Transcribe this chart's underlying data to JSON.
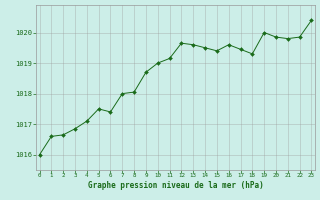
{
  "x": [
    0,
    1,
    2,
    3,
    4,
    5,
    6,
    7,
    8,
    9,
    10,
    11,
    12,
    13,
    14,
    15,
    16,
    17,
    18,
    19,
    20,
    21,
    22,
    23
  ],
  "y": [
    1016.0,
    1016.6,
    1016.65,
    1016.85,
    1017.1,
    1017.5,
    1017.4,
    1018.0,
    1018.05,
    1018.7,
    1019.0,
    1019.15,
    1019.65,
    1019.6,
    1019.5,
    1019.4,
    1019.6,
    1019.45,
    1019.3,
    1020.0,
    1019.85,
    1019.8,
    1019.85,
    1020.4
  ],
  "line_color": "#1a6b1a",
  "marker_color": "#1a6b1a",
  "bg_color": "#cceee8",
  "grid_color": "#999999",
  "xlabel": "Graphe pression niveau de la mer (hPa)",
  "xlabel_color": "#1a6b1a",
  "tick_color": "#1a6b1a",
  "ylim": [
    1015.5,
    1020.9
  ],
  "xlim": [
    -0.3,
    23.3
  ],
  "yticks": [
    1016,
    1017,
    1018,
    1019,
    1020
  ],
  "xticks": [
    0,
    1,
    2,
    3,
    4,
    5,
    6,
    7,
    8,
    9,
    10,
    11,
    12,
    13,
    14,
    15,
    16,
    17,
    18,
    19,
    20,
    21,
    22,
    23
  ],
  "figsize": [
    3.2,
    2.0
  ],
  "dpi": 100
}
